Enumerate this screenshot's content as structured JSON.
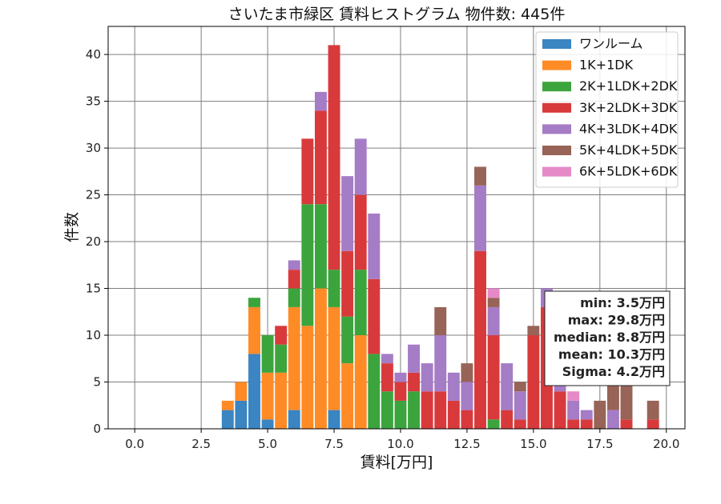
{
  "chart_data": {
    "type": "bar",
    "stacked": true,
    "title": "さいたま市緑区 賃料ヒストグラム 物件数: 445件",
    "xlabel": "賃料[万円]",
    "ylabel": "件数",
    "xlim": [
      -1.0,
      20.7
    ],
    "ylim": [
      0,
      43
    ],
    "xticks": [
      0.0,
      2.5,
      5.0,
      7.5,
      10.0,
      12.5,
      15.0,
      17.5,
      20.0
    ],
    "xtick_labels": [
      "0.0",
      "2.5",
      "5.0",
      "7.5",
      "10.0",
      "12.5",
      "15.0",
      "17.5",
      "20.0"
    ],
    "yticks": [
      0,
      5,
      10,
      15,
      20,
      25,
      30,
      35,
      40
    ],
    "ytick_labels": [
      "0",
      "5",
      "10",
      "15",
      "20",
      "25",
      "30",
      "35",
      "40"
    ],
    "grid": true,
    "legend_position": "top-right",
    "bin_width": 0.5,
    "bin_starts": [
      3.25,
      3.75,
      4.25,
      4.75,
      5.25,
      5.75,
      6.25,
      6.75,
      7.25,
      7.75,
      8.25,
      8.75,
      9.25,
      9.75,
      10.25,
      10.75,
      11.25,
      11.75,
      12.25,
      12.75,
      13.25,
      13.75,
      14.25,
      14.75,
      15.25,
      15.75,
      16.25,
      16.75,
      17.25,
      17.75,
      18.25,
      18.75,
      19.25,
      19.75
    ],
    "series": [
      {
        "name": "ワンルーム",
        "color": "#3a85c2",
        "values": [
          2,
          3,
          8,
          1,
          0,
          2,
          0,
          0,
          2,
          0,
          0,
          0,
          0,
          0,
          0,
          0,
          0,
          0,
          0,
          0,
          0,
          0,
          0,
          0,
          0,
          0,
          0,
          0,
          0,
          0,
          0,
          0,
          0,
          0
        ]
      },
      {
        "name": "1K+1DK",
        "color": "#ff8b26",
        "values": [
          1,
          2,
          5,
          5,
          6,
          11,
          11,
          15,
          11,
          7,
          10,
          0,
          0,
          0,
          0,
          0,
          0,
          0,
          0,
          0,
          0,
          0,
          0,
          0,
          0,
          0,
          0,
          0,
          0,
          0,
          0,
          0,
          0,
          0
        ]
      },
      {
        "name": "2K+1LDK+2DK",
        "color": "#3ca43c",
        "values": [
          0,
          0,
          1,
          4,
          3,
          2,
          13,
          9,
          4,
          5,
          7,
          8,
          4,
          3,
          4,
          0,
          0,
          0,
          0,
          0,
          1,
          0,
          0,
          0,
          0,
          0,
          0,
          0,
          0,
          0,
          0,
          0,
          0,
          0
        ]
      },
      {
        "name": "3K+2LDK+3DK",
        "color": "#d83a3c",
        "values": [
          0,
          0,
          0,
          0,
          2,
          2,
          7,
          10,
          24,
          7,
          8,
          8,
          3,
          2,
          2,
          4,
          4,
          3,
          2,
          19,
          9,
          2,
          1,
          10,
          13,
          4,
          1,
          1,
          0,
          0,
          1,
          0,
          1,
          0
        ]
      },
      {
        "name": "4K+3LDK+4DK",
        "color": "#a57cc6",
        "values": [
          0,
          0,
          0,
          0,
          0,
          1,
          0,
          2,
          0,
          8,
          6,
          7,
          1,
          1,
          3,
          3,
          6,
          3,
          3,
          7,
          3,
          5,
          3,
          0,
          2,
          3,
          2,
          1,
          0,
          2,
          0,
          0,
          0,
          0
        ]
      },
      {
        "name": "5K+4LDK+5DK",
        "color": "#976457",
        "values": [
          0,
          0,
          0,
          0,
          0,
          0,
          0,
          0,
          0,
          0,
          0,
          0,
          0,
          0,
          0,
          0,
          3,
          0,
          2,
          2,
          1,
          0,
          1,
          1,
          0,
          0,
          0,
          0,
          3,
          4,
          4,
          0,
          2,
          0
        ]
      },
      {
        "name": "6K+5LDK+6DK",
        "color": "#e68ac7",
        "values": [
          0,
          0,
          0,
          0,
          0,
          0,
          0,
          0,
          0,
          0,
          0,
          0,
          0,
          0,
          0,
          0,
          0,
          0,
          0,
          0,
          1,
          0,
          0,
          0,
          0,
          0,
          1,
          0,
          0,
          0,
          0,
          0,
          0,
          0
        ]
      }
    ],
    "stats": [
      "min: 3.5万円",
      "max: 29.8万円",
      "median: 8.8万円",
      "mean: 10.3万円",
      "Sigma: 4.2万円"
    ]
  }
}
